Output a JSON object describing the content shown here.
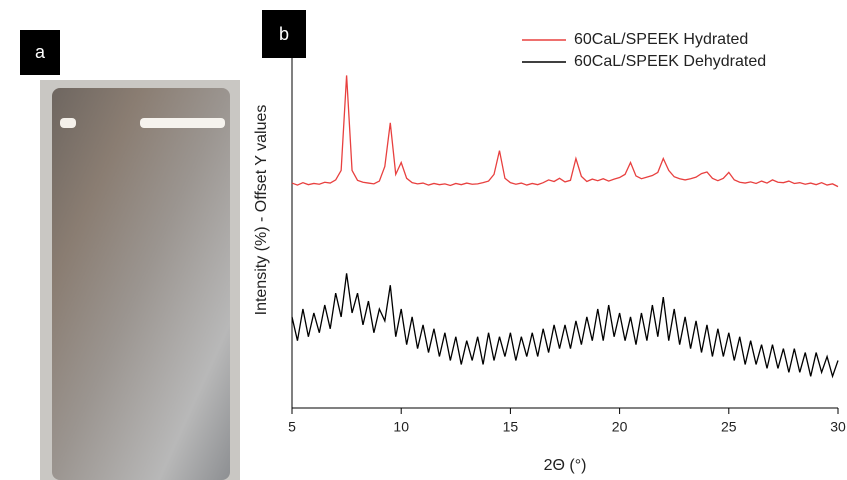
{
  "panel_a": {
    "label": "a"
  },
  "chart_data": {
    "type": "line",
    "panel_label": "b",
    "xlabel": "2Θ (°)",
    "ylabel": "Intensity (%) - Offset Y values",
    "xlim": [
      5,
      30
    ],
    "xticks": [
      5,
      10,
      15,
      20,
      25,
      30
    ],
    "ylim": [
      0,
      100
    ],
    "legend": "upper right",
    "x": [
      5,
      5.25,
      5.5,
      5.75,
      6,
      6.25,
      6.5,
      6.75,
      7,
      7.25,
      7.5,
      7.75,
      8,
      8.25,
      8.5,
      8.75,
      9,
      9.25,
      9.5,
      9.75,
      10,
      10.25,
      10.5,
      10.75,
      11,
      11.25,
      11.5,
      11.75,
      12,
      12.25,
      12.5,
      12.75,
      13,
      13.25,
      13.5,
      13.75,
      14,
      14.25,
      14.5,
      14.75,
      15,
      15.25,
      15.5,
      15.75,
      16,
      16.25,
      16.5,
      16.75,
      17,
      17.25,
      17.5,
      17.75,
      18,
      18.25,
      18.5,
      18.75,
      19,
      19.25,
      19.5,
      19.75,
      20,
      20.25,
      20.5,
      20.75,
      21,
      21.25,
      21.5,
      21.75,
      22,
      22.25,
      22.5,
      22.75,
      23,
      23.25,
      23.5,
      23.75,
      24,
      24.25,
      24.5,
      24.75,
      25,
      25.25,
      25.5,
      25.75,
      26,
      26.25,
      26.5,
      26.75,
      27,
      27.25,
      27.5,
      27.75,
      28,
      28.25,
      28.5,
      28.75,
      29,
      29.25,
      29.5,
      29.75,
      30
    ],
    "series": [
      {
        "name": "60CaL/SPEEK Hydrated",
        "color": "#e8403f",
        "values": [
          56.8,
          56.3,
          56.9,
          56.4,
          56.7,
          56.5,
          57.0,
          56.8,
          57.6,
          60,
          84,
          60,
          57.5,
          57,
          56.8,
          56.6,
          57.3,
          61,
          72,
          59,
          62,
          58,
          56.9,
          56.6,
          56.8,
          56.3,
          56.7,
          56.4,
          56.6,
          56.2,
          56.7,
          56.4,
          56.8,
          56.5,
          56.6,
          56.9,
          57.3,
          59,
          65,
          58,
          56.9,
          56.5,
          56.8,
          56.3,
          56.7,
          56.4,
          56.9,
          57.6,
          57.2,
          58,
          57.1,
          57.5,
          63,
          58.5,
          57.2,
          57.8,
          57.4,
          57.9,
          57.3,
          57.8,
          58.2,
          59,
          62,
          58.6,
          57.9,
          58.3,
          58.7,
          59.5,
          63,
          60,
          58.4,
          57.9,
          57.6,
          57.9,
          58.3,
          59.2,
          59.6,
          58,
          57.4,
          58,
          59.5,
          57.6,
          57,
          56.8,
          57.1,
          56.7,
          57.3,
          56.8,
          57.6,
          57,
          56.9,
          57.3,
          56.7,
          56.9,
          56.5,
          56.8,
          56.4,
          56.9,
          56.3,
          56.6,
          55.9
        ]
      },
      {
        "name": "60CaL/SPEEK Dehydrated",
        "color": "#000000",
        "values": [
          23,
          17,
          25,
          18,
          24,
          19,
          26,
          20,
          29,
          23,
          34,
          24,
          29,
          21,
          27,
          19,
          25,
          22,
          31,
          18,
          25,
          16,
          23,
          15,
          21,
          14,
          20,
          13,
          19,
          12,
          18,
          11,
          17,
          12,
          18,
          11,
          19,
          12,
          18,
          13,
          19,
          12,
          18,
          13,
          19,
          13,
          20,
          14,
          21,
          15,
          21,
          15,
          22,
          16,
          23,
          17,
          25,
          17,
          26,
          18,
          24,
          17,
          23,
          16,
          24,
          17,
          26,
          18,
          28,
          17,
          25,
          16,
          23,
          15,
          22,
          14,
          21,
          13,
          20,
          13,
          19,
          12,
          18,
          11,
          17,
          11,
          16,
          10,
          16,
          10,
          15,
          9,
          15,
          9,
          14,
          8,
          14,
          9,
          13,
          8,
          12
        ]
      }
    ]
  }
}
